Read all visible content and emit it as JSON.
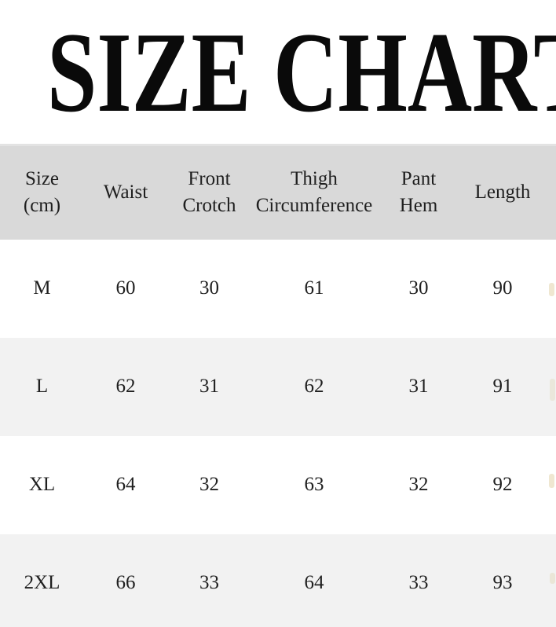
{
  "title": {
    "text": "SIZE CHART"
  },
  "table": {
    "header_bg": "#d9d9d9",
    "row_bg": "#ffffff",
    "row_alt_bg": "#f2f2f2",
    "text_color": "#1f1f1f",
    "title_color": "#0a0a0a",
    "columns": [
      {
        "line1": "Size",
        "line2": "(cm)"
      },
      {
        "line1": "Waist"
      },
      {
        "line1": "Front",
        "line2": "Crotch"
      },
      {
        "line1": "Thigh",
        "line2": "Circumference"
      },
      {
        "line1": "Pant",
        "line2": "Hem"
      },
      {
        "line1": "Length"
      }
    ],
    "rows": [
      {
        "size": "M",
        "waist": "60",
        "front_crotch": "30",
        "thigh_circumference": "61",
        "pant_hem": "30",
        "length": "90"
      },
      {
        "size": "L",
        "waist": "62",
        "front_crotch": "31",
        "thigh_circumference": "62",
        "pant_hem": "31",
        "length": "91"
      },
      {
        "size": "XL",
        "waist": "64",
        "front_crotch": "32",
        "thigh_circumference": "63",
        "pant_hem": "32",
        "length": "92"
      },
      {
        "size": "2XL",
        "waist": "66",
        "front_crotch": "33",
        "thigh_circumference": "64",
        "pant_hem": "33",
        "length": "93"
      }
    ]
  },
  "chart_data": {
    "type": "table",
    "title": "SIZE CHART",
    "columns": [
      "Size (cm)",
      "Waist",
      "Front Crotch",
      "Thigh Circumference",
      "Pant Hem",
      "Length"
    ],
    "rows": [
      [
        "M",
        60,
        30,
        61,
        30,
        90
      ],
      [
        "L",
        62,
        31,
        62,
        31,
        91
      ],
      [
        "XL",
        64,
        32,
        63,
        32,
        92
      ],
      [
        "2XL",
        66,
        33,
        64,
        33,
        93
      ]
    ],
    "layout_hints": {
      "header_background": "#d9d9d9",
      "alternating_row_background": "#f2f2f2",
      "title_and_table_clipped_at_right_edge": true
    }
  }
}
